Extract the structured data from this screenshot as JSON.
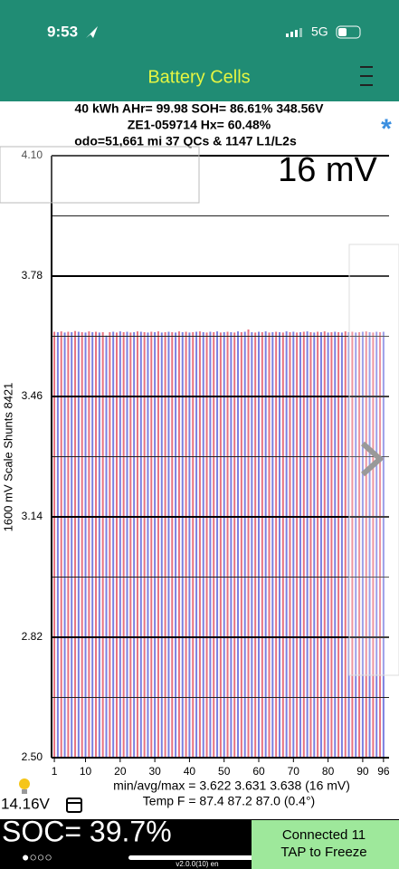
{
  "status_bar": {
    "time": "9:53",
    "network": "5G"
  },
  "header": {
    "title": "Battery Cells"
  },
  "info": {
    "line1": "40 kWh  AHr= 99.98  SOH= 86.61%   348.56V",
    "line2": "ZE1-059714   Hx= 60.48%",
    "line3": "odo=51,661 mi 37 QCs & 1147 L1/L2s"
  },
  "chart_data": {
    "type": "bar",
    "spread_label": "16 mV",
    "y_label": "1600 mV Scale   Shunts 8421",
    "x": [
      1,
      2,
      3,
      4,
      5,
      6,
      7,
      8,
      9,
      10,
      11,
      12,
      13,
      14,
      15,
      16,
      17,
      18,
      19,
      20,
      21,
      22,
      23,
      24,
      25,
      26,
      27,
      28,
      29,
      30,
      31,
      32,
      33,
      34,
      35,
      36,
      37,
      38,
      39,
      40,
      41,
      42,
      43,
      44,
      45,
      46,
      47,
      48,
      49,
      50,
      51,
      52,
      53,
      54,
      55,
      56,
      57,
      58,
      59,
      60,
      61,
      62,
      63,
      64,
      65,
      66,
      67,
      68,
      69,
      70,
      71,
      72,
      73,
      74,
      75,
      76,
      77,
      78,
      79,
      80,
      81,
      82,
      83,
      84,
      85,
      86,
      87,
      88,
      89,
      90,
      91,
      92,
      93,
      94,
      95,
      96
    ],
    "values": [
      3.632,
      3.631,
      3.633,
      3.63,
      3.632,
      3.631,
      3.634,
      3.632,
      3.631,
      3.63,
      3.633,
      3.631,
      3.632,
      3.63,
      3.631,
      3.622,
      3.631,
      3.632,
      3.63,
      3.633,
      3.631,
      3.632,
      3.63,
      3.631,
      3.633,
      3.632,
      3.631,
      3.63,
      3.632,
      3.631,
      3.633,
      3.63,
      3.631,
      3.632,
      3.631,
      3.63,
      3.633,
      3.631,
      3.632,
      3.63,
      3.631,
      3.632,
      3.633,
      3.631,
      3.63,
      3.632,
      3.631,
      3.633,
      3.63,
      3.631,
      3.632,
      3.631,
      3.63,
      3.633,
      3.631,
      3.632,
      3.638,
      3.631,
      3.63,
      3.632,
      3.631,
      3.633,
      3.63,
      3.631,
      3.632,
      3.631,
      3.63,
      3.633,
      3.631,
      3.632,
      3.63,
      3.631,
      3.632,
      3.633,
      3.631,
      3.63,
      3.632,
      3.631,
      3.633,
      3.63,
      3.631,
      3.632,
      3.631,
      3.63,
      3.633,
      3.631,
      3.632,
      3.63,
      3.631,
      3.632,
      3.633,
      3.631,
      3.63,
      3.632,
      3.631,
      3.632
    ],
    "colors": [
      "#e8727f",
      "#7b7fe0"
    ],
    "xlim": [
      0.2,
      97.6
    ],
    "xticks": [
      1,
      10,
      20,
      30,
      40,
      50,
      60,
      70,
      80,
      90,
      96
    ],
    "ylim": [
      2.5,
      4.1
    ],
    "yticks": [
      {
        "value": 4.1,
        "label": "4.10"
      },
      3.78,
      3.46,
      3.14,
      2.82,
      {
        "value": 2.5,
        "label": "2.50"
      }
    ],
    "minor_yticks": [
      3.94,
      3.62,
      3.3,
      2.98,
      2.66
    ],
    "grid": true
  },
  "stats": {
    "min_avg_max": "min/avg/max = 3.622 3.631 3.638  (16 mV)",
    "temp": "Temp F = 87.4  87.2  87.0  (0.4°)",
    "pack_voltage": "14.16V"
  },
  "footer": {
    "soc": "SOC= 39.7%",
    "connection": "Connected 11",
    "action": "TAP to Freeze",
    "version": "v2.0.0(10) en",
    "page_dots": "●○○○"
  }
}
